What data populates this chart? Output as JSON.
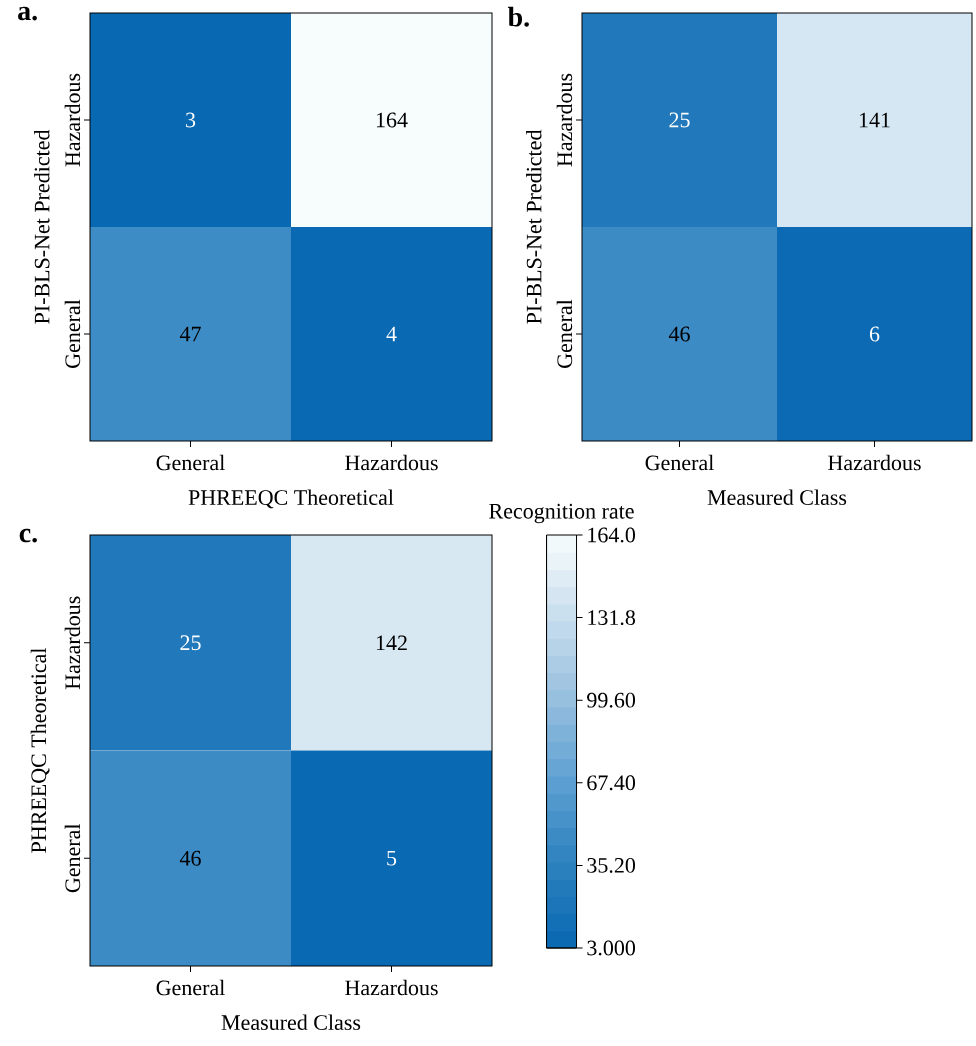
{
  "chart_data": [
    {
      "type": "heatmap",
      "title": "a.",
      "xlabel": "PHREEQC Theoretical",
      "ylabel": "PI-BLS-Net Predicted",
      "categories": [
        "General",
        "Hazardous"
      ],
      "y_categories": [
        "Hazardous",
        "General"
      ],
      "cells": [
        [
          3,
          164
        ],
        [
          47,
          4
        ]
      ],
      "data_labels": true
    },
    {
      "type": "heatmap",
      "title": "b.",
      "xlabel": "Measured Class",
      "ylabel": "PI-BLS-Net Predicted",
      "categories": [
        "General",
        "Hazardous"
      ],
      "y_categories": [
        "Hazardous",
        "General"
      ],
      "cells": [
        [
          25,
          141
        ],
        [
          46,
          6
        ]
      ],
      "data_labels": true
    },
    {
      "type": "heatmap",
      "title": "c.",
      "xlabel": "Measured Class",
      "ylabel": "PHREEQC Theoretical",
      "categories": [
        "General",
        "Hazardous"
      ],
      "y_categories": [
        "Hazardous",
        "General"
      ],
      "cells": [
        [
          25,
          142
        ],
        [
          46,
          5
        ]
      ],
      "data_labels": true,
      "clabel": "Recognition rate",
      "clim": [
        3,
        164
      ],
      "cticks": [
        {
          "value": 3,
          "label": "3.000"
        },
        {
          "value": 35.2,
          "label": "35.20"
        },
        {
          "value": 67.4,
          "label": "67.40"
        },
        {
          "value": 99.6,
          "label": "99.60"
        },
        {
          "value": 131.8,
          "label": "131.8"
        },
        {
          "value": 164,
          "label": "164.0"
        }
      ]
    }
  ]
}
